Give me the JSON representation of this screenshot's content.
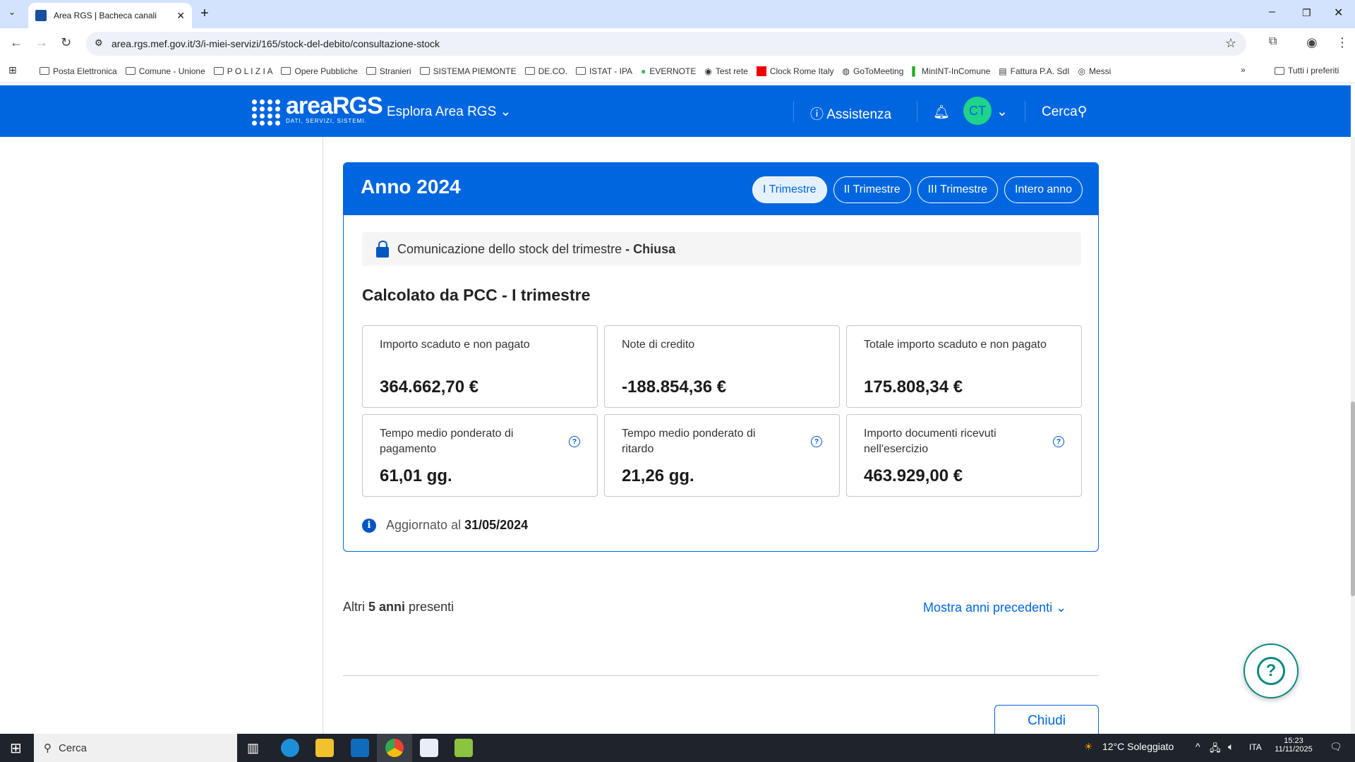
{
  "browser": {
    "tab_title": "Area RGS | Bacheca canali",
    "url": "area.rgs.mef.gov.it/3/i-miei-servizi/165/stock-del-debito/consultazione-stock",
    "bookmarks": [
      "Posta Elettronica",
      "Comune - Unione",
      "P O L I Z I A",
      "Opere Pubbliche",
      "Stranieri",
      "SISTEMA PIEMONTE",
      "DE.CO.",
      "ISTAT - IPA",
      "EVERNOTE",
      "Test rete",
      "Clock Rome Italy",
      "GoToMeeting",
      "MinINT-InComune",
      "Fattura P.A. SdI",
      "Messi"
    ],
    "all_bookmarks": "Tutti i preferiti"
  },
  "header": {
    "logo_text": "areaRGS",
    "logo_tagline": "DATI, SERVIZI, SISTEMI.",
    "explore": "Esplora Area RGS",
    "assistance": "Assistenza",
    "avatar": "CT",
    "search": "Cerca"
  },
  "card": {
    "year": "Anno 2024",
    "quarters": [
      {
        "label": "I Trimestre",
        "active": true
      },
      {
        "label": "II Trimestre",
        "active": false
      },
      {
        "label": "III Trimestre",
        "active": false
      },
      {
        "label": "Intero anno",
        "active": false
      }
    ],
    "status_text": "Comunicazione dello stock del trimestre",
    "status_value": "- Chiusa",
    "subtitle": "Calcolato da PCC - I trimestre",
    "metrics": [
      {
        "label": "Importo scaduto e non pagato",
        "value": "364.662,70 €"
      },
      {
        "label": "Note di credito",
        "value": "-188.854,36 €"
      },
      {
        "label": "Totale importo scaduto e non pagato",
        "value": "175.808,34 €"
      },
      {
        "label": "Tempo medio ponderato di pagamento",
        "value": "61,01 gg."
      },
      {
        "label": "Tempo medio ponderato di ritardo",
        "value": "21,26 gg."
      },
      {
        "label": "Importo documenti ricevuti nell'esercizio",
        "value": "463.929,00 €"
      }
    ],
    "updated_label": "Aggiornato al",
    "updated_date": "31/05/2024"
  },
  "others": {
    "prefix": "Altri",
    "count": "5 anni",
    "suffix": "presenti",
    "show_more": "Mostra anni precedenti"
  },
  "close_button": "Chiudi",
  "colors": {
    "primary": "#0066e0",
    "avatar": "#1ed38a",
    "help": "#0a8a80"
  },
  "taskbar": {
    "search": "Cerca",
    "weather": "12°C  Soleggiato",
    "lang": "ITA",
    "time": "15:23",
    "date": "11/11/2025"
  }
}
